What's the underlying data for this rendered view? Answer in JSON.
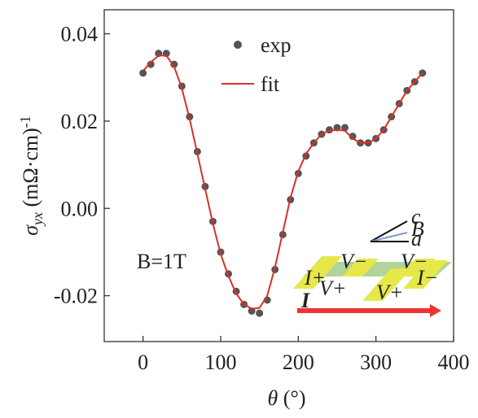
{
  "chart_data": {
    "type": "scatter-line",
    "xlabel": {
      "symbol": "θ",
      "unit": "(°)"
    },
    "ylabel": {
      "symbol": "σ",
      "subscript": "yx",
      "unit": "(mΩ·cm)",
      "exponent": "-1"
    },
    "x": [
      0,
      10,
      20,
      30,
      40,
      50,
      60,
      70,
      80,
      90,
      100,
      110,
      120,
      130,
      140,
      150,
      160,
      170,
      180,
      190,
      200,
      210,
      220,
      230,
      240,
      250,
      260,
      270,
      280,
      290,
      300,
      310,
      320,
      330,
      340,
      350,
      360
    ],
    "series": [
      {
        "name": "exp",
        "color": "#555555",
        "values": [
          0.031,
          0.033,
          0.0355,
          0.0355,
          0.033,
          0.028,
          0.021,
          0.013,
          0.005,
          -0.003,
          -0.01,
          -0.015,
          -0.019,
          -0.022,
          -0.0235,
          -0.024,
          -0.021,
          -0.014,
          -0.006,
          0.002,
          0.008,
          0.012,
          0.015,
          0.017,
          0.018,
          0.0185,
          0.0185,
          0.0165,
          0.015,
          0.015,
          0.016,
          0.018,
          0.021,
          0.024,
          0.027,
          0.029,
          0.031
        ]
      },
      {
        "name": "fit",
        "color": "#d9302a",
        "values": [
          0.0315,
          0.0335,
          0.035,
          0.035,
          0.0325,
          0.0275,
          0.0205,
          0.0125,
          0.0045,
          -0.0035,
          -0.0105,
          -0.0155,
          -0.0195,
          -0.022,
          -0.023,
          -0.0228,
          -0.02,
          -0.0135,
          -0.0055,
          0.0025,
          0.0085,
          0.0125,
          0.015,
          0.017,
          0.0178,
          0.018,
          0.0178,
          0.016,
          0.015,
          0.015,
          0.016,
          0.018,
          0.021,
          0.024,
          0.027,
          0.029,
          0.031
        ]
      }
    ],
    "xlim": [
      -50,
      400
    ],
    "xticks": [
      0,
      100,
      200,
      300,
      400
    ],
    "ylim": [
      -0.0305,
      0.0455
    ],
    "yticks": [
      -0.02,
      {
        "value": 0,
        "label": "0.00"
      },
      0.02,
      0.04
    ],
    "annotation": "B=1T",
    "inset": {
      "labels": [
        "c",
        "B",
        "a",
        "I+",
        "V−",
        "V−",
        "V+",
        "V+",
        "I−",
        "I"
      ]
    }
  }
}
